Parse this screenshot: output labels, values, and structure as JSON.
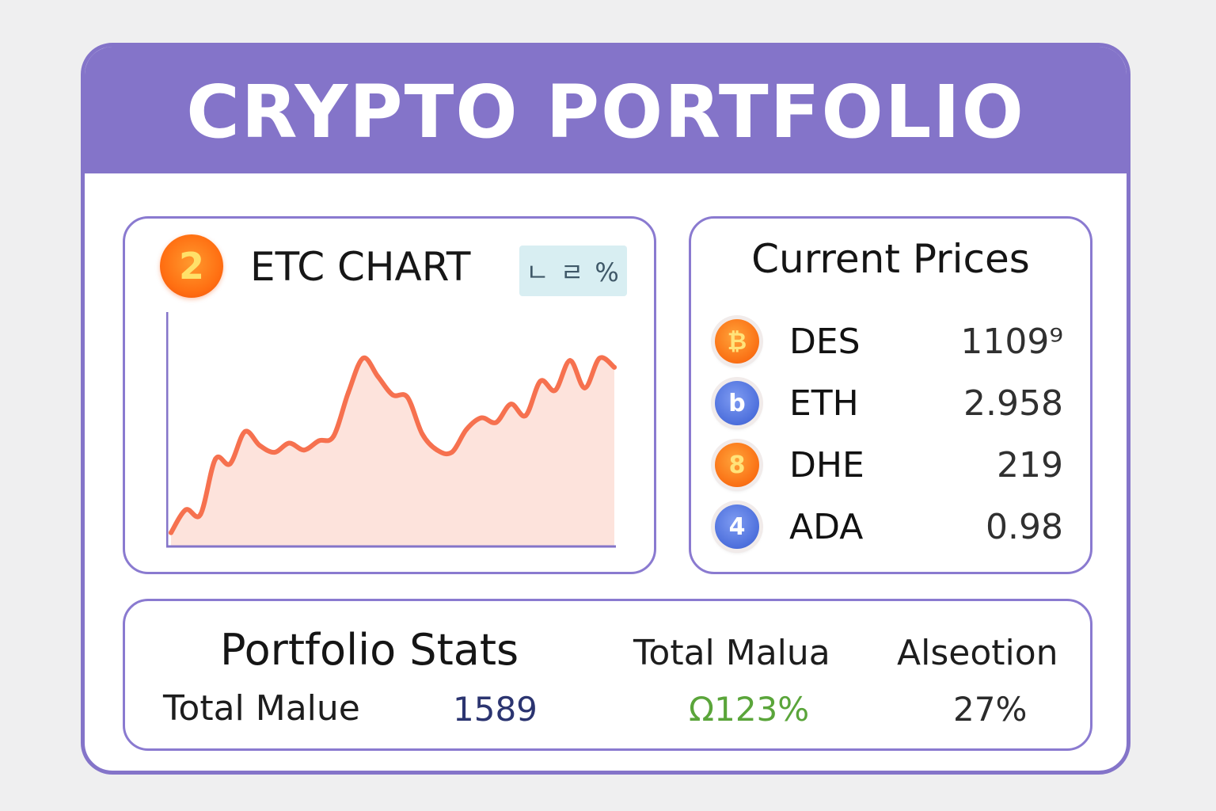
{
  "header": {
    "title": "CRYPTO PORTFOLIO"
  },
  "chart_panel": {
    "badge": "2",
    "title": "ETC CHART",
    "chip": "ㄴ ㄹ %",
    "line_color": "#f6714f",
    "fill_color": "#fde3dc",
    "axis_color": "#8474c9"
  },
  "chart_data": {
    "type": "area",
    "title": "ETC CHART",
    "xlabel": "",
    "ylabel": "",
    "ylim": [
      0,
      100
    ],
    "x": [
      0,
      1,
      2,
      3,
      4,
      5,
      6,
      7,
      8,
      9,
      10,
      11,
      12,
      13,
      14,
      15,
      16,
      17,
      18,
      19,
      20,
      21,
      22,
      23,
      24,
      25,
      26,
      27,
      28,
      29,
      30
    ],
    "values": [
      6,
      16,
      14,
      38,
      36,
      50,
      44,
      41,
      45,
      42,
      46,
      48,
      67,
      82,
      74,
      66,
      65,
      49,
      42,
      41,
      51,
      56,
      54,
      62,
      57,
      72,
      68,
      81,
      69,
      82,
      78
    ]
  },
  "prices_panel": {
    "title": "Current Prices",
    "rows": [
      {
        "icon": "bitcoin-icon",
        "glyph": "₿",
        "symbol": "DES",
        "price": "1109⁹",
        "color": "orange"
      },
      {
        "icon": "blue-coin-icon",
        "glyph": "b",
        "symbol": "ETH",
        "price": "2.958",
        "color": "blue"
      },
      {
        "icon": "orange-coin-icon",
        "glyph": "8",
        "symbol": "DHE",
        "price": "219",
        "color": "orange"
      },
      {
        "icon": "cardano-icon",
        "glyph": "4",
        "symbol": "ADA",
        "price": "0.98",
        "color": "blue"
      }
    ]
  },
  "stats_panel": {
    "title": "Portfolio Stats",
    "total_value_label": "Total Malue",
    "total_value": "1589",
    "change_label": "Total Malua",
    "change_value": "Ω123%",
    "allocation_label": "Alseotion",
    "allocation_value": "27%",
    "value_color": "#2b3470",
    "change_color": "#5aa53a",
    "allocation_color": "#2b2b2b"
  }
}
